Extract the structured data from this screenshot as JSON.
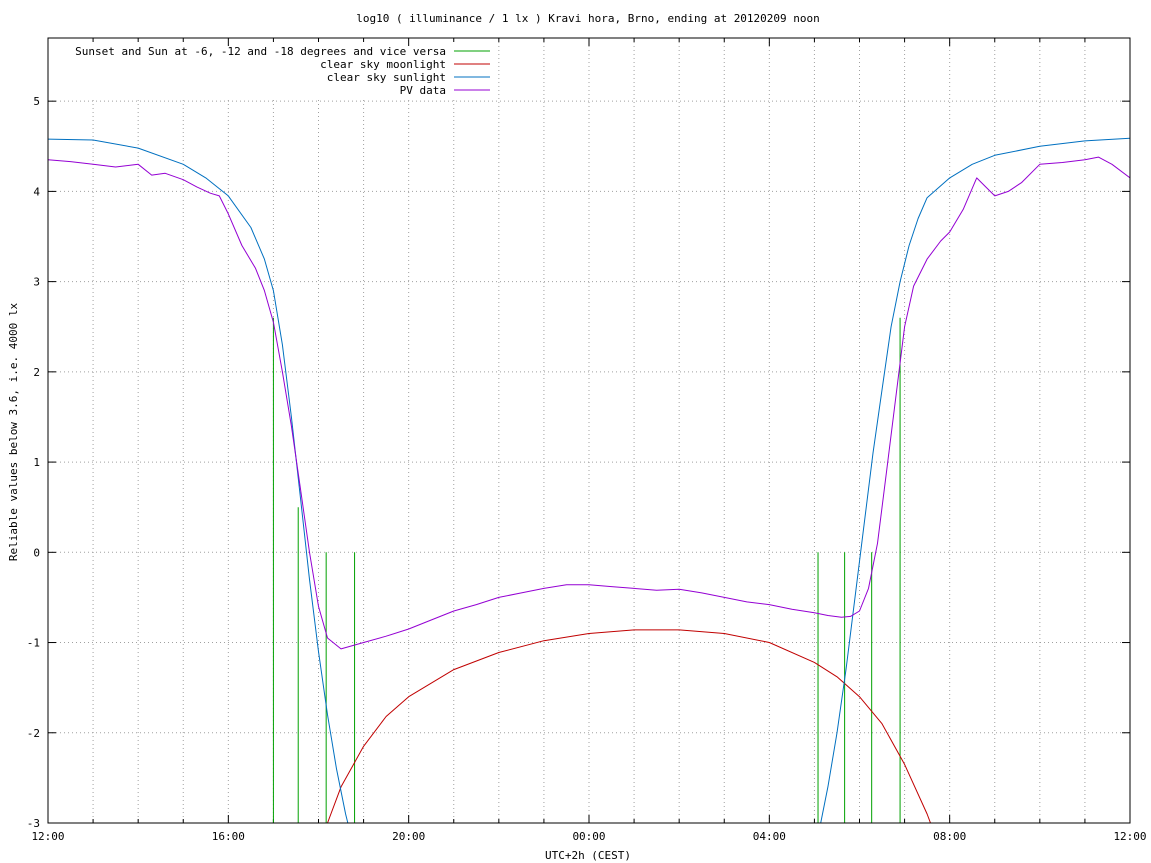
{
  "chart_data": {
    "type": "line",
    "title": "log10 ( illuminance / 1 lx ) Kravi hora, Brno, ending at 20120209 noon",
    "xlabel": "UTC+2h (CEST)",
    "ylabel": "Reliable values below 3.6, i.e. 4000 lx",
    "xlim": [
      12,
      36
    ],
    "ylim": [
      -3,
      5.7
    ],
    "xticks": [
      {
        "value": 12,
        "label": "12:00"
      },
      {
        "value": 16,
        "label": "16:00"
      },
      {
        "value": 20,
        "label": "20:00"
      },
      {
        "value": 24,
        "label": "00:00"
      },
      {
        "value": 28,
        "label": "04:00"
      },
      {
        "value": 32,
        "label": "08:00"
      },
      {
        "value": 36,
        "label": "12:00"
      }
    ],
    "yticks": [
      {
        "value": -3,
        "label": "-3"
      },
      {
        "value": -2,
        "label": "-2"
      },
      {
        "value": -1,
        "label": "-1"
      },
      {
        "value": 0,
        "label": "0"
      },
      {
        "value": 1,
        "label": "1"
      },
      {
        "value": 2,
        "label": "2"
      },
      {
        "value": 3,
        "label": "3"
      },
      {
        "value": 4,
        "label": "4"
      },
      {
        "value": 5,
        "label": "5"
      }
    ],
    "grid": true,
    "grid_x_step_hours": 1,
    "legend_position": "top-left",
    "series": [
      {
        "name": "Sunset and Sun at -6, -12 and -18 degrees and vice versa",
        "color": "#00a000",
        "style": "impulses",
        "points": [
          {
            "x": 17.0,
            "y": 2.6
          },
          {
            "x": 17.55,
            "y": 0.5
          },
          {
            "x": 18.17,
            "y": 0.0
          },
          {
            "x": 18.8,
            "y": 0.0
          },
          {
            "x": 29.08,
            "y": 0.0
          },
          {
            "x": 29.67,
            "y": 0.0
          },
          {
            "x": 30.27,
            "y": 0.0
          },
          {
            "x": 30.9,
            "y": 2.6
          }
        ]
      },
      {
        "name": "clear sky moonlight",
        "color": "#c00000",
        "style": "line",
        "x": [
          18.0,
          18.2,
          18.5,
          19.0,
          19.5,
          20.0,
          21.0,
          22.0,
          23.0,
          24.0,
          25.0,
          26.0,
          27.0,
          28.0,
          29.0,
          29.5,
          30.0,
          30.5,
          31.0,
          31.5,
          31.8
        ],
        "y": [
          -3.5,
          -3.0,
          -2.6,
          -2.15,
          -1.82,
          -1.6,
          -1.3,
          -1.11,
          -0.98,
          -0.9,
          -0.86,
          -0.86,
          -0.9,
          -1.0,
          -1.22,
          -1.38,
          -1.6,
          -1.9,
          -2.35,
          -2.9,
          -3.3
        ]
      },
      {
        "name": "clear sky sunlight",
        "color": "#0070c0",
        "style": "line",
        "x": [
          12.0,
          13.0,
          14.0,
          15.0,
          15.5,
          16.0,
          16.5,
          16.8,
          17.0,
          17.2,
          17.4,
          17.6,
          17.8,
          18.0,
          18.2,
          18.4,
          18.6,
          18.75,
          18.9,
          29.0,
          29.1,
          29.3,
          29.5,
          29.7,
          29.9,
          30.1,
          30.3,
          30.5,
          30.7,
          30.9,
          31.1,
          31.3,
          31.5,
          32.0,
          32.5,
          33.0,
          34.0,
          35.0,
          36.0
        ],
        "y": [
          4.58,
          4.57,
          4.48,
          4.3,
          4.15,
          3.95,
          3.6,
          3.25,
          2.9,
          2.3,
          1.5,
          0.6,
          -0.3,
          -1.1,
          -1.8,
          -2.4,
          -2.9,
          -3.2,
          -3.5,
          -3.5,
          -3.1,
          -2.6,
          -2.0,
          -1.3,
          -0.5,
          0.3,
          1.1,
          1.8,
          2.5,
          3.0,
          3.4,
          3.7,
          3.93,
          4.15,
          4.3,
          4.4,
          4.5,
          4.56,
          4.59
        ]
      },
      {
        "name": "PV data",
        "color": "#9400d3",
        "style": "line",
        "x": [
          12.0,
          12.5,
          13.0,
          13.5,
          14.0,
          14.3,
          14.6,
          15.0,
          15.3,
          15.6,
          15.8,
          16.0,
          16.3,
          16.6,
          16.8,
          17.0,
          17.2,
          17.4,
          17.6,
          17.8,
          18.0,
          18.2,
          18.5,
          19.0,
          19.5,
          20.0,
          20.5,
          21.0,
          21.5,
          22.0,
          22.5,
          23.0,
          23.5,
          24.0,
          24.5,
          25.0,
          25.5,
          26.0,
          26.5,
          27.0,
          27.5,
          28.0,
          28.5,
          29.0,
          29.3,
          29.6,
          29.8,
          30.0,
          30.2,
          30.4,
          30.6,
          30.8,
          31.0,
          31.2,
          31.5,
          31.8,
          32.0,
          32.3,
          32.6,
          32.8,
          33.0,
          33.3,
          33.6,
          34.0,
          34.5,
          35.0,
          35.3,
          35.6,
          36.0
        ],
        "y": [
          4.35,
          4.33,
          4.3,
          4.27,
          4.3,
          4.18,
          4.2,
          4.13,
          4.05,
          3.98,
          3.95,
          3.75,
          3.4,
          3.15,
          2.9,
          2.55,
          2.0,
          1.4,
          0.7,
          0.0,
          -0.6,
          -0.95,
          -1.07,
          -1.0,
          -0.93,
          -0.85,
          -0.75,
          -0.65,
          -0.58,
          -0.5,
          -0.45,
          -0.4,
          -0.36,
          -0.36,
          -0.38,
          -0.4,
          -0.42,
          -0.41,
          -0.45,
          -0.5,
          -0.55,
          -0.58,
          -0.63,
          -0.67,
          -0.7,
          -0.72,
          -0.71,
          -0.65,
          -0.4,
          0.1,
          0.9,
          1.7,
          2.5,
          2.95,
          3.25,
          3.45,
          3.55,
          3.8,
          4.15,
          4.05,
          3.95,
          4.0,
          4.1,
          4.3,
          4.32,
          4.35,
          4.38,
          4.3,
          4.15
        ]
      }
    ]
  }
}
